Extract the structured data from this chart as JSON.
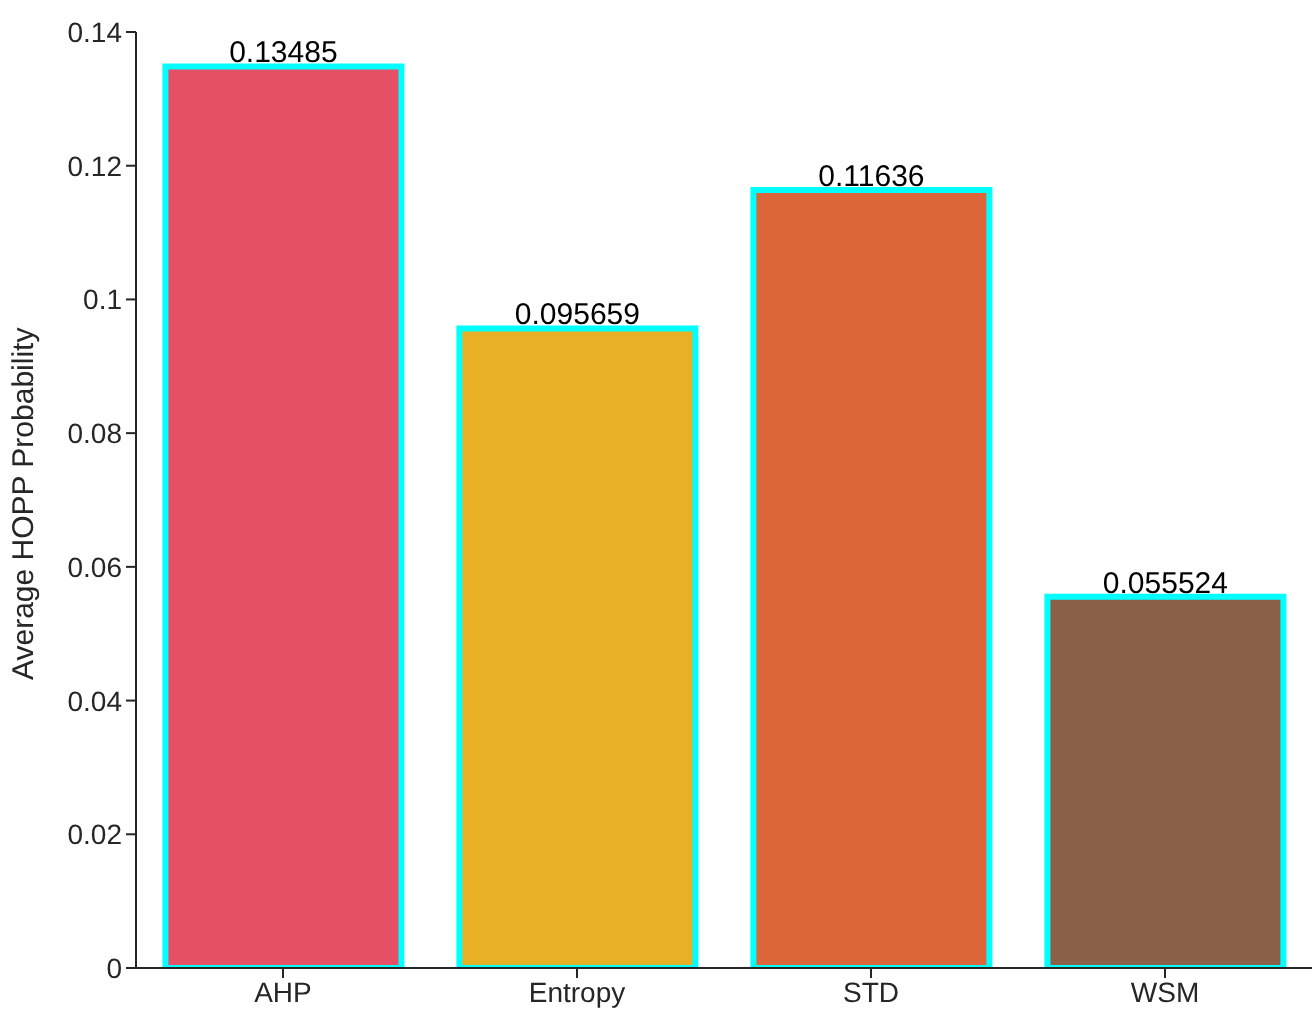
{
  "chart_data": {
    "type": "bar",
    "ylabel": "Average HOPP Probability",
    "categories": [
      "AHP",
      "Entropy",
      "STD",
      "WSM"
    ],
    "values": [
      0.13485,
      0.095659,
      0.11636,
      0.055524
    ],
    "colors": [
      "#e65064",
      "#e8b024",
      "#dc663a",
      "#8c5f48"
    ],
    "ylim": [
      0,
      0.14
    ],
    "yticks": [
      0,
      0.02,
      0.04,
      0.06,
      0.08,
      0.1,
      0.12,
      0.14
    ],
    "data_labels": true,
    "grid": false,
    "legend": false
  }
}
